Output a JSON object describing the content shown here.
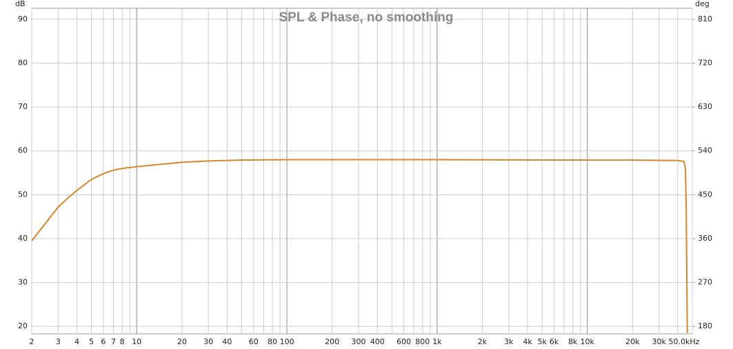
{
  "chart_data": {
    "type": "line",
    "title": "SPL & Phase, no smoothing",
    "ylabel": "dB",
    "y2label": "deg",
    "xscale": "log",
    "xlim": [
      2,
      50000
    ],
    "xticks": [
      2,
      3,
      4,
      5,
      6,
      7,
      8,
      10,
      20,
      30,
      40,
      60,
      80,
      100,
      200,
      300,
      400,
      600,
      800,
      {
        "value": 1000,
        "label": "1k"
      },
      {
        "value": 2000,
        "label": "2k"
      },
      {
        "value": 3000,
        "label": "3k"
      },
      {
        "value": 4000,
        "label": "4k"
      },
      {
        "value": 5000,
        "label": "5k"
      },
      {
        "value": 6000,
        "label": "6k"
      },
      {
        "value": 8000,
        "label": "8k"
      },
      {
        "value": 10000,
        "label": "10k"
      },
      {
        "value": 20000,
        "label": "20k"
      },
      {
        "value": 30000,
        "label": "30k"
      },
      {
        "value": 50000,
        "label": "50.0kHz"
      }
    ],
    "xminorticks": [
      9,
      50,
      70,
      90,
      500,
      700,
      900,
      7000,
      9000,
      40000
    ],
    "ylim": [
      18.3,
      92.5
    ],
    "yticks": [
      20,
      30,
      40,
      50,
      60,
      70,
      80,
      90
    ],
    "y2lim": [
      164.7,
      832.5
    ],
    "y2ticks": [
      180,
      270,
      360,
      450,
      540,
      630,
      720,
      810
    ],
    "grid": true,
    "x": [
      2,
      2.5,
      3,
      3.5,
      4,
      5,
      6,
      7,
      8,
      10,
      15,
      20,
      30,
      50,
      100,
      1000,
      10000,
      20000,
      40000,
      44000,
      45000,
      45500,
      46000,
      46300
    ],
    "series": [
      {
        "name": "SPL",
        "color": "#d4862a",
        "values": [
          39.5,
          43.7,
          47.2,
          49.3,
          51.0,
          53.5,
          54.8,
          55.6,
          56.0,
          56.4,
          57.0,
          57.4,
          57.7,
          57.9,
          58.0,
          58.0,
          57.9,
          57.9,
          57.8,
          57.6,
          56.0,
          48.0,
          30.0,
          18.5
        ]
      }
    ]
  }
}
